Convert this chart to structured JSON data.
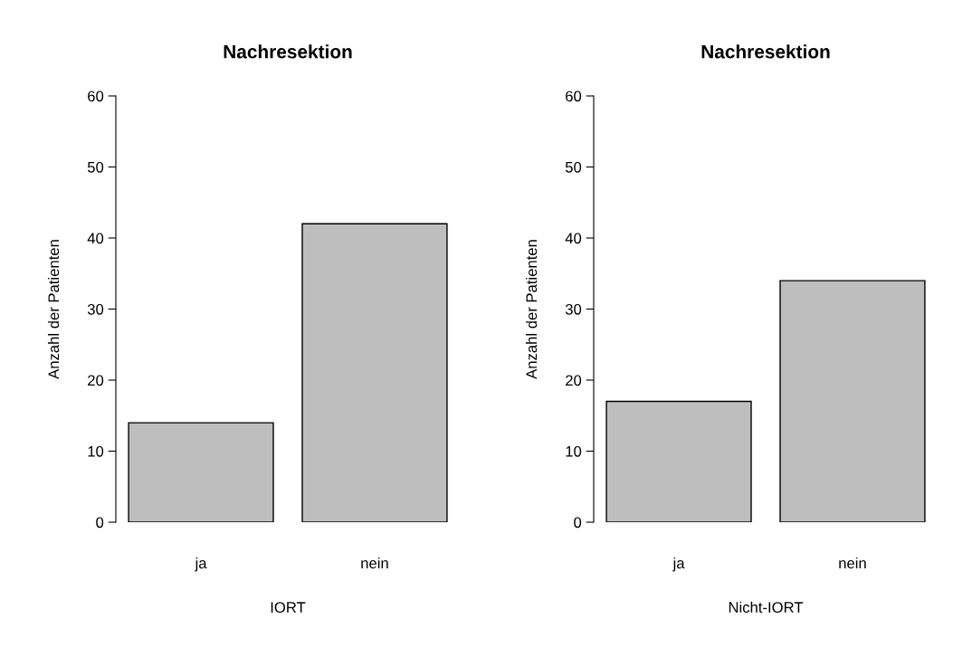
{
  "chart_data": [
    {
      "type": "bar",
      "title": "Nachresektion",
      "xlabel": "IORT",
      "ylabel": "Anzahl der Patienten",
      "categories": [
        "ja",
        "nein"
      ],
      "values": [
        14,
        42
      ],
      "color": "#bebebe",
      "ylim": [
        0,
        60
      ],
      "yticks": [
        0,
        10,
        20,
        30,
        40,
        50,
        60
      ]
    },
    {
      "type": "bar",
      "title": "Nachresektion",
      "xlabel": "Nicht-IORT",
      "ylabel": "Anzahl der Patienten",
      "categories": [
        "ja",
        "nein"
      ],
      "values": [
        17,
        34
      ],
      "color": "#bebebe",
      "ylim": [
        0,
        60
      ],
      "yticks": [
        0,
        10,
        20,
        30,
        40,
        50,
        60
      ]
    }
  ]
}
